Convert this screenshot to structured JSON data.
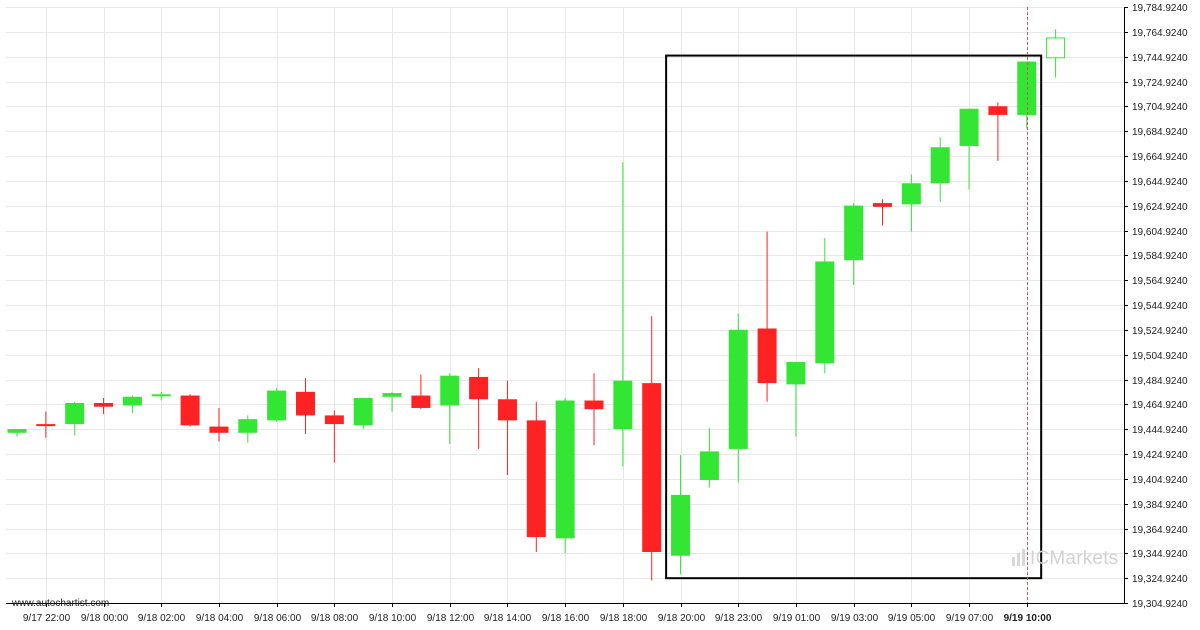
{
  "source_label": "www.autochartist.com",
  "watermark": {
    "mark": "IC",
    "text": "Markets"
  },
  "colors": {
    "up": "#33e633",
    "down": "#ff2222",
    "grid": "#e8e8e8",
    "box": "#000000"
  },
  "chart_data": {
    "type": "candlestick",
    "ylim": [
      19304.924,
      19784.924
    ],
    "y_ticks": [
      "19,304.9240",
      "19,324.9240",
      "19,344.9240",
      "19,364.9240",
      "19,384.9240",
      "19,404.9240",
      "19,424.9240",
      "19,444.9240",
      "19,464.9240",
      "19,484.9240",
      "19,504.9240",
      "19,524.9240",
      "19,544.9240",
      "19,564.9240",
      "19,584.9240",
      "19,604.9240",
      "19,624.9240",
      "19,644.9240",
      "19,664.9240",
      "19,684.9240",
      "19,704.9240",
      "19,724.9240",
      "19,744.9240",
      "19,764.9240",
      "19,784.9240"
    ],
    "x_ticks": [
      {
        "label": "9/17 22:00",
        "index": 1
      },
      {
        "label": "9/18 00:00",
        "index": 3
      },
      {
        "label": "9/18 02:00",
        "index": 5
      },
      {
        "label": "9/18 04:00",
        "index": 7
      },
      {
        "label": "9/18 06:00",
        "index": 9
      },
      {
        "label": "9/18 08:00",
        "index": 11
      },
      {
        "label": "9/18 10:00",
        "index": 13
      },
      {
        "label": "9/18 12:00",
        "index": 15
      },
      {
        "label": "9/18 14:00",
        "index": 17
      },
      {
        "label": "9/18 16:00",
        "index": 19
      },
      {
        "label": "9/18 18:00",
        "index": 21
      },
      {
        "label": "9/18 20:00",
        "index": 23
      },
      {
        "label": "9/18 23:00",
        "index": 25
      },
      {
        "label": "9/19 01:00",
        "index": 27
      },
      {
        "label": "9/19 03:00",
        "index": 29
      },
      {
        "label": "9/19 05:00",
        "index": 31
      },
      {
        "label": "9/19 07:00",
        "index": 33
      },
      {
        "label": "9/19 10:00",
        "index": 35,
        "bold": true
      }
    ],
    "candles": [
      {
        "o": 19442,
        "h": 19445,
        "l": 19439,
        "c": 19445
      },
      {
        "o": 19449,
        "h": 19459,
        "l": 19438,
        "c": 19448
      },
      {
        "o": 19449,
        "h": 19467,
        "l": 19440,
        "c": 19466
      },
      {
        "o": 19466,
        "h": 19470,
        "l": 19457,
        "c": 19463
      },
      {
        "o": 19464,
        "h": 19472,
        "l": 19458,
        "c": 19471
      },
      {
        "o": 19472,
        "h": 19475,
        "l": 19468,
        "c": 19473
      },
      {
        "o": 19472,
        "h": 19473,
        "l": 19447,
        "c": 19448
      },
      {
        "o": 19447,
        "h": 19462,
        "l": 19435,
        "c": 19442
      },
      {
        "o": 19442,
        "h": 19456,
        "l": 19434,
        "c": 19453
      },
      {
        "o": 19452,
        "h": 19478,
        "l": 19451,
        "c": 19476
      },
      {
        "o": 19475,
        "h": 19486,
        "l": 19441,
        "c": 19456
      },
      {
        "o": 19456,
        "h": 19460,
        "l": 19418,
        "c": 19449
      },
      {
        "o": 19448,
        "h": 19470,
        "l": 19445,
        "c": 19470
      },
      {
        "o": 19471,
        "h": 19475,
        "l": 19459,
        "c": 19474
      },
      {
        "o": 19472,
        "h": 19489,
        "l": 19461,
        "c": 19462
      },
      {
        "o": 19464,
        "h": 19490,
        "l": 19433,
        "c": 19488
      },
      {
        "o": 19487,
        "h": 19494,
        "l": 19429,
        "c": 19469
      },
      {
        "o": 19469,
        "h": 19484,
        "l": 19408,
        "c": 19452
      },
      {
        "o": 19452,
        "h": 19467,
        "l": 19346,
        "c": 19358
      },
      {
        "o": 19357,
        "h": 19470,
        "l": 19345,
        "c": 19468
      },
      {
        "o": 19468,
        "h": 19490,
        "l": 19432,
        "c": 19461
      },
      {
        "o": 19445,
        "h": 19660,
        "l": 19415,
        "c": 19484
      },
      {
        "o": 19482,
        "h": 19536,
        "l": 19323,
        "c": 19346
      },
      {
        "o": 19343,
        "h": 19424,
        "l": 19328,
        "c": 19392
      },
      {
        "o": 19404,
        "h": 19446,
        "l": 19398,
        "c": 19427
      },
      {
        "o": 19429,
        "h": 19538,
        "l": 19402,
        "c": 19525
      },
      {
        "o": 19526,
        "h": 19604,
        "l": 19467,
        "c": 19482
      },
      {
        "o": 19481,
        "h": 19499,
        "l": 19439,
        "c": 19499
      },
      {
        "o": 19498,
        "h": 19599,
        "l": 19490,
        "c": 19580
      },
      {
        "o": 19581,
        "h": 19627,
        "l": 19561,
        "c": 19625
      },
      {
        "o": 19627,
        "h": 19630,
        "l": 19609,
        "c": 19624
      },
      {
        "o": 19626,
        "h": 19650,
        "l": 19604,
        "c": 19643
      },
      {
        "o": 19643,
        "h": 19680,
        "l": 19628,
        "c": 19672
      },
      {
        "o": 19673,
        "h": 19703,
        "l": 19638,
        "c": 19703
      },
      {
        "o": 19705,
        "h": 19708,
        "l": 19661,
        "c": 19698
      },
      {
        "o": 19698,
        "h": 19741,
        "l": 19687,
        "c": 19741
      },
      {
        "o": 19744,
        "h": 19767,
        "l": 19728,
        "c": 19760,
        "hollow": true
      }
    ],
    "pattern_box": {
      "start_index": 22.5,
      "end_index": 35.5,
      "low": 19324.9,
      "high": 19745.8
    },
    "current_time_index": 35
  }
}
